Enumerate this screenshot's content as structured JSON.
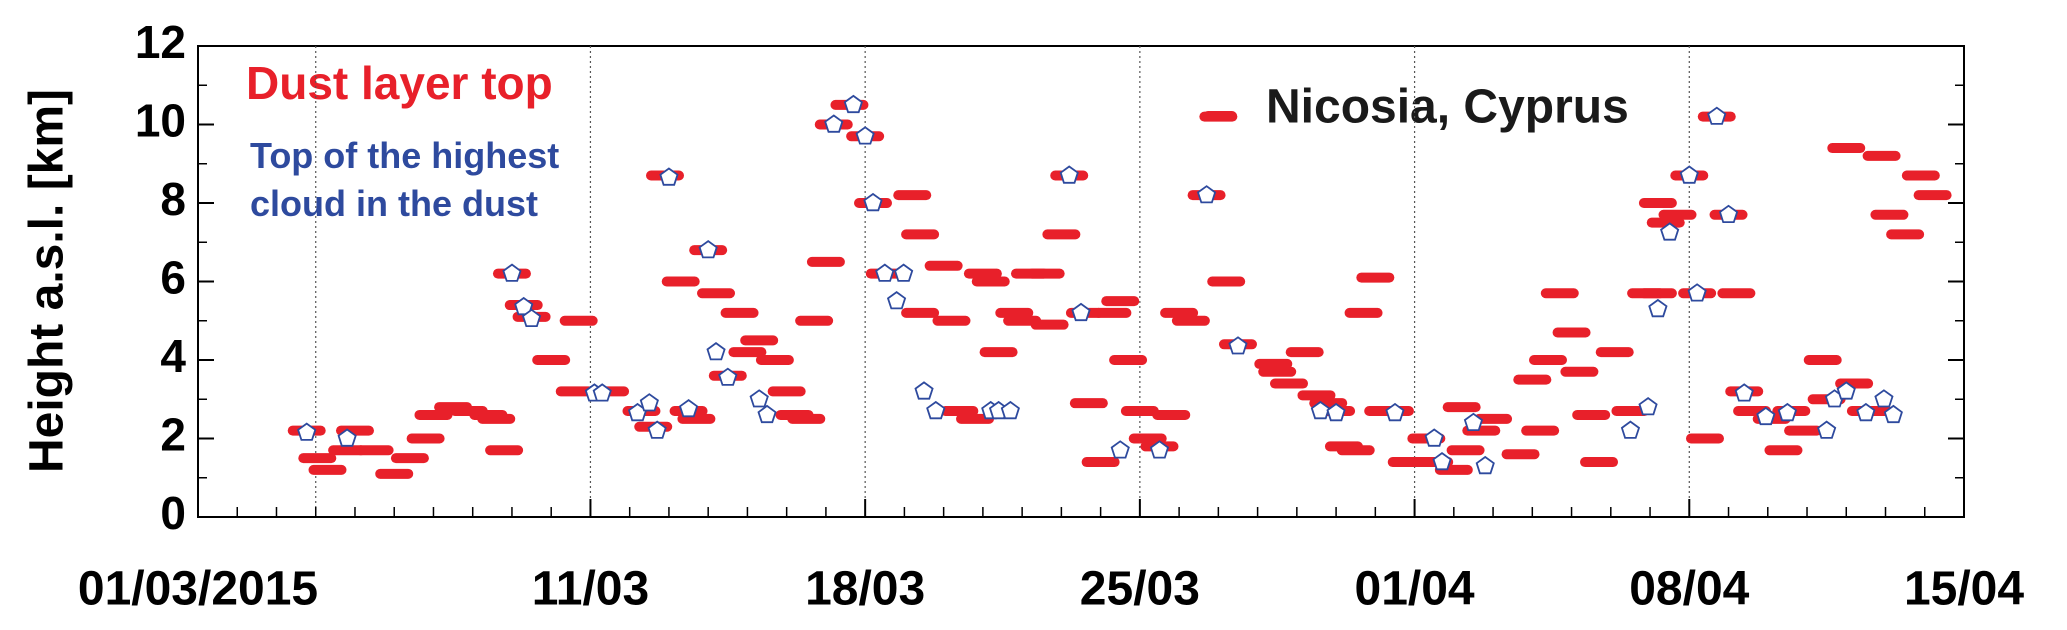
{
  "chart_data": {
    "type": "scatter",
    "ylabel": "Height a.s.l. [km]",
    "annotation": "Nicosia, Cyprus",
    "xlim": [
      0,
      45
    ],
    "ylim": [
      0,
      12
    ],
    "xticks": [
      {
        "value": 0,
        "label": "01/03/2015"
      },
      {
        "value": 10,
        "label": "11/03"
      },
      {
        "value": 17,
        "label": "18/03"
      },
      {
        "value": 24,
        "label": "25/03"
      },
      {
        "value": 31,
        "label": "01/04"
      },
      {
        "value": 38,
        "label": "08/04"
      },
      {
        "value": 45,
        "label": "15/04"
      }
    ],
    "xminor_ticks": [
      1,
      2,
      3,
      4,
      5,
      6,
      7,
      8,
      9,
      11,
      12,
      13,
      14,
      15,
      16,
      18,
      19,
      20,
      21,
      22,
      23,
      25,
      26,
      27,
      28,
      29,
      30,
      32,
      33,
      34,
      35,
      36,
      37,
      39,
      40,
      41,
      42,
      43,
      44
    ],
    "xgrid": [
      3,
      10,
      17,
      24,
      31,
      38
    ],
    "yticks": [
      0,
      2,
      4,
      6,
      8,
      10,
      12
    ],
    "yminor_ticks": [
      1,
      3,
      5,
      7,
      9,
      11
    ],
    "series": [
      {
        "name": "Dust layer top",
        "color": "#e8202a",
        "marker": "dash",
        "x": [
          2.77,
          3.04,
          3.3,
          4.0,
          3.8,
          4.5,
          5.0,
          5.4,
          5.8,
          6.0,
          6.5,
          6.9,
          7.4,
          7.6,
          7.8,
          8.0,
          8.3,
          8.5,
          9.0,
          9.6,
          9.7,
          10.5,
          11.3,
          11.6,
          11.9,
          12.3,
          12.5,
          12.7,
          13.0,
          13.2,
          13.5,
          13.8,
          14.0,
          14.3,
          14.7,
          15.0,
          15.2,
          15.5,
          15.7,
          16.0,
          16.2,
          16.6,
          17.0,
          17.2,
          17.5,
          18.2,
          18.4,
          18.4,
          19.0,
          19.2,
          19.4,
          19.8,
          20.0,
          20.2,
          20.4,
          20.8,
          21.0,
          21.2,
          21.6,
          21.7,
          22.0,
          22.2,
          22.6,
          22.7,
          23.0,
          23.3,
          23.5,
          23.7,
          24.0,
          24.2,
          24.5,
          24.8,
          25.0,
          25.3,
          25.7,
          26.0,
          26.2,
          26.5,
          27.4,
          27.5,
          27.8,
          28.2,
          28.5,
          28.8,
          29.0,
          29.2,
          29.5,
          29.7,
          30.0,
          30.2,
          30.5,
          30.8,
          31.5,
          31.3,
          32.0,
          32.2,
          32.3,
          32.7,
          33.0,
          33.7,
          34.0,
          34.2,
          34.4,
          34.7,
          35.0,
          35.2,
          35.5,
          35.7,
          36.1,
          36.5,
          36.9,
          37.2,
          37.4,
          37.7,
          37.2,
          38.0,
          38.2,
          38.4,
          38.7,
          39.0,
          39.2,
          39.4,
          39.6,
          40.1,
          40.4,
          40.6,
          40.9,
          41.4,
          41.5,
          42.0,
          42.2,
          42.5,
          42.9,
          43.1,
          43.5,
          43.9,
          44.2,
          42.7
        ],
        "values": [
          2.2,
          1.5,
          1.2,
          2.2,
          1.7,
          1.7,
          1.1,
          1.5,
          2.0,
          2.6,
          2.8,
          2.7,
          2.6,
          2.5,
          1.7,
          6.2,
          5.4,
          5.1,
          4.0,
          3.2,
          5.0,
          3.2,
          2.7,
          2.3,
          8.7,
          6.0,
          2.7,
          2.5,
          6.8,
          5.7,
          3.6,
          5.2,
          4.2,
          4.5,
          4.0,
          3.2,
          2.6,
          2.5,
          5.0,
          6.5,
          10.0,
          10.5,
          9.7,
          8.0,
          6.2,
          8.2,
          7.2,
          5.2,
          6.4,
          5.0,
          2.7,
          2.5,
          6.2,
          6.0,
          4.2,
          5.2,
          5.0,
          6.2,
          6.2,
          4.9,
          7.2,
          8.7,
          5.2,
          2.9,
          1.4,
          5.2,
          5.5,
          4.0,
          2.7,
          2.0,
          1.8,
          2.6,
          5.2,
          5.0,
          8.2,
          10.2,
          6.0,
          4.4,
          3.9,
          3.7,
          3.4,
          4.2,
          3.1,
          2.9,
          2.7,
          1.8,
          1.7,
          5.2,
          6.1,
          2.7,
          2.7,
          1.4,
          1.4,
          2.0,
          1.2,
          2.8,
          1.7,
          2.2,
          2.5,
          1.6,
          3.5,
          2.2,
          4.0,
          5.7,
          4.7,
          3.7,
          2.6,
          1.4,
          4.2,
          2.7,
          5.7,
          8.0,
          7.5,
          7.7,
          5.7,
          8.7,
          5.7,
          2.0,
          10.2,
          7.7,
          5.7,
          3.2,
          2.7,
          2.5,
          1.7,
          2.7,
          2.2,
          4.0,
          3.0,
          9.4,
          3.4,
          2.7,
          9.2,
          7.7,
          7.2,
          8.7,
          8.2,
          2.7
        ]
      },
      {
        "name": "Top of the highest cloud in the dust",
        "color": "#2e4a9e",
        "marker": "pentagon",
        "x": [
          2.77,
          3.8,
          8.0,
          8.3,
          8.5,
          10.1,
          10.3,
          11.2,
          11.5,
          11.7,
          12.0,
          12.5,
          13.0,
          13.2,
          13.5,
          14.3,
          14.5,
          16.2,
          16.7,
          17.0,
          17.2,
          17.5,
          17.98,
          17.8,
          18.5,
          18.8,
          20.2,
          20.4,
          20.7,
          22.2,
          22.5,
          23.5,
          24.5,
          25.7,
          26.5,
          28.6,
          29.0,
          30.5,
          31.5,
          31.7,
          32.5,
          32.8,
          36.5,
          36.95,
          37.2,
          37.5,
          38.0,
          38.2,
          38.7,
          39.0,
          39.4,
          39.95,
          40.5,
          41.5,
          41.7,
          42.0,
          42.5,
          42.96,
          43.2
        ],
        "values": [
          2.15,
          2.0,
          6.2,
          5.35,
          5.05,
          3.15,
          3.15,
          2.65,
          2.9,
          2.2,
          8.65,
          2.75,
          6.8,
          4.2,
          3.55,
          3.0,
          2.6,
          10.0,
          10.5,
          9.7,
          8.0,
          6.2,
          6.2,
          5.5,
          3.2,
          2.7,
          2.7,
          2.7,
          2.7,
          8.7,
          5.2,
          1.7,
          1.7,
          8.2,
          4.35,
          2.7,
          2.65,
          2.65,
          2.0,
          1.4,
          2.4,
          1.3,
          2.2,
          2.8,
          5.3,
          7.25,
          8.7,
          5.7,
          10.2,
          7.7,
          3.15,
          2.55,
          2.65,
          2.2,
          3.0,
          3.2,
          2.65,
          3.0,
          2.6
        ]
      }
    ]
  }
}
